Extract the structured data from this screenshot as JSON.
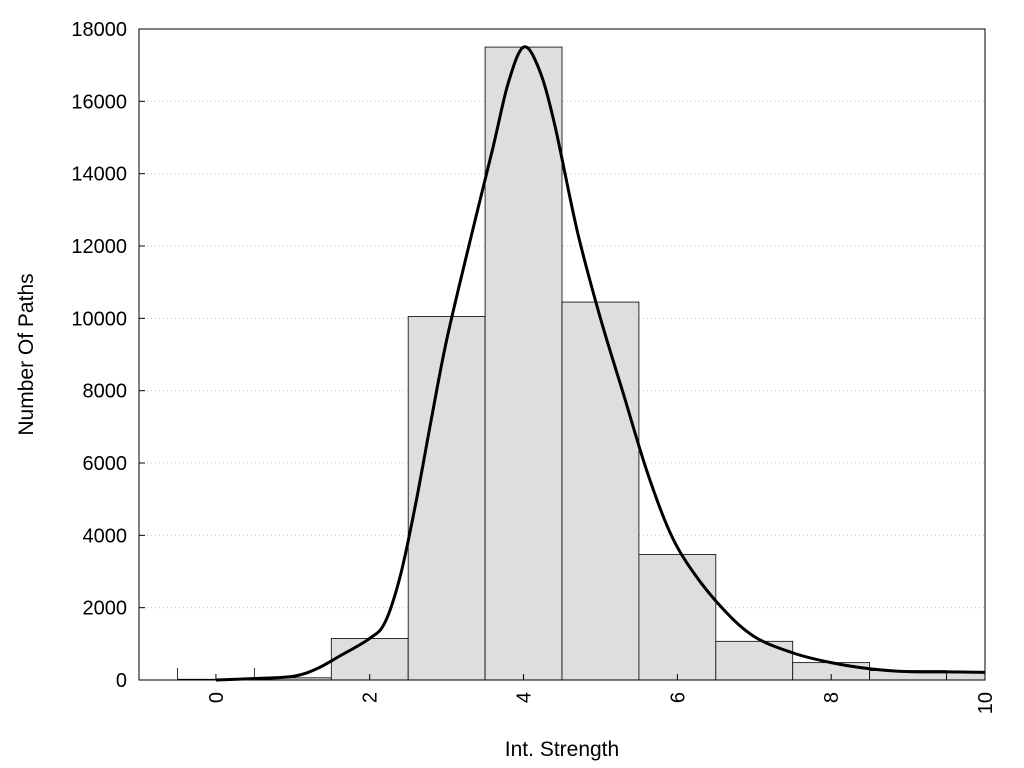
{
  "chart_data": {
    "type": "bar",
    "xlabel": "Int. Strength",
    "ylabel": "Number Of Paths",
    "xlim": [
      -1,
      10
    ],
    "ylim": [
      0,
      18000
    ],
    "x_ticks": [
      0,
      2,
      4,
      6,
      8,
      10
    ],
    "y_ticks": [
      0,
      2000,
      4000,
      6000,
      8000,
      10000,
      12000,
      14000,
      16000,
      18000
    ],
    "grid": "horizontal-dotted",
    "bar_color": "#dedede",
    "bars": [
      {
        "x": 0,
        "value": 20
      },
      {
        "x": 1,
        "value": 60
      },
      {
        "x": 2,
        "value": 1150
      },
      {
        "x": 3,
        "value": 10050
      },
      {
        "x": 4,
        "value": 17500
      },
      {
        "x": 5,
        "value": 10450
      },
      {
        "x": 6,
        "value": 3470
      },
      {
        "x": 7,
        "value": 1070
      },
      {
        "x": 8,
        "value": 480
      },
      {
        "x": 9,
        "value": 260
      },
      {
        "x": 10,
        "value": 210
      }
    ],
    "fit_curve": {
      "x": [
        0,
        0.5,
        1.0,
        1.3,
        1.6,
        2.0,
        2.2,
        2.4,
        2.6,
        2.8,
        3.0,
        3.3,
        3.6,
        3.8,
        4.0,
        4.2,
        4.4,
        4.7,
        5.0,
        5.3,
        5.6,
        5.9,
        6.2,
        6.6,
        7.0,
        7.5,
        8.0,
        8.5,
        9.0,
        9.5,
        10.0
      ],
      "y": [
        0,
        40,
        100,
        300,
        650,
        1150,
        1600,
        2900,
        4900,
        7200,
        9400,
        12100,
        14700,
        16500,
        17500,
        16900,
        15400,
        12400,
        10000,
        7900,
        5800,
        4100,
        3000,
        1950,
        1200,
        750,
        480,
        310,
        230,
        225,
        210
      ]
    }
  }
}
